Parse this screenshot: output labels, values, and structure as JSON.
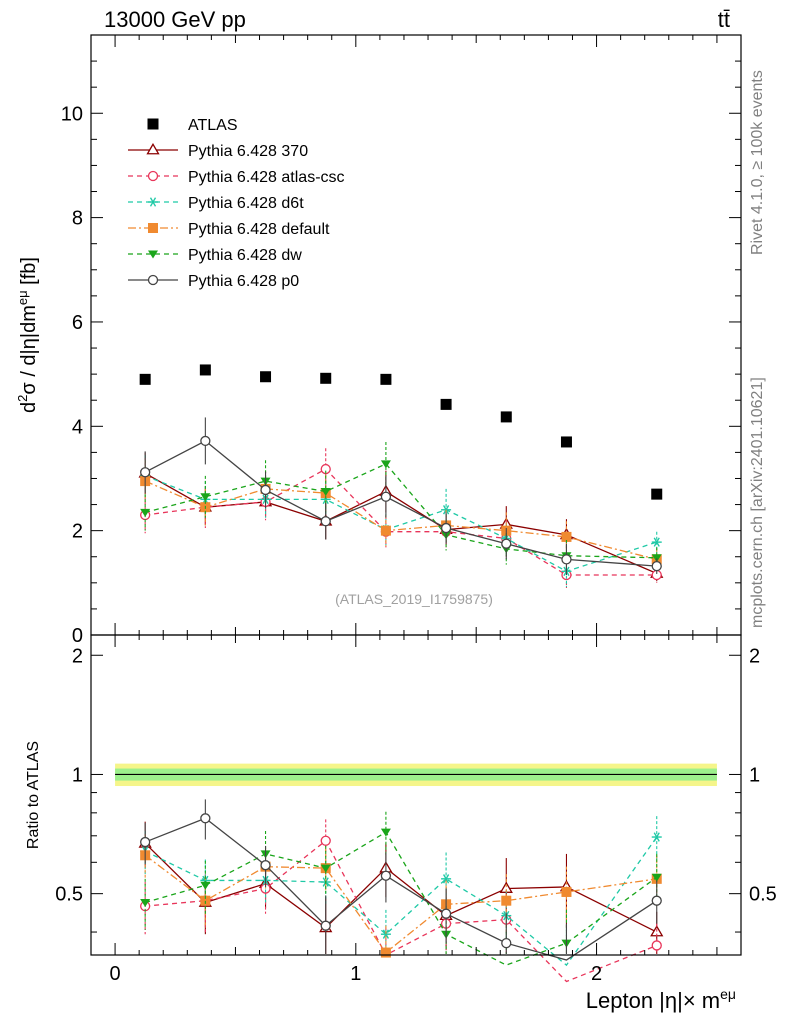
{
  "header": {
    "left": "13000 GeV pp",
    "right": "tt̄"
  },
  "side_labels": {
    "rivet": "Rivet 4.1.0, ≥ 100k events",
    "mcplots": "mcplots.cern.ch [arXiv:2401.10621]"
  },
  "colors": {
    "atlas": "#000000",
    "p370": "#8b0000",
    "atlascsc": "#e8355a",
    "d6t": "#1fc9a6",
    "default": "#f08a30",
    "dw": "#1aa51a",
    "p0": "#444444",
    "band_yellow": "#f5f58a",
    "band_green": "#9cf08c"
  },
  "chart_data": [
    {
      "type": "scatter",
      "title": "",
      "watermark": "(ATLAS_2019_I1759875)",
      "xlabel": "Lepton |η|× m^eμ",
      "ylabel": "d²σ / d|η|dm^eμ [fb]",
      "xlim": [
        -0.1,
        2.6
      ],
      "ylim": [
        0,
        11.5
      ],
      "yticks": [
        "0",
        "2",
        "4",
        "6",
        "8",
        "10"
      ],
      "x": [
        0.125,
        0.375,
        0.625,
        0.875,
        1.125,
        1.375,
        1.625,
        1.875,
        2.25
      ],
      "series": [
        {
          "name": "ATLAS",
          "key": "atlas",
          "marker": "square-filled",
          "line": "none",
          "values": [
            4.9,
            5.08,
            4.95,
            4.92,
            4.9,
            4.42,
            4.18,
            3.7,
            2.7
          ]
        },
        {
          "name": "Pythia 6.428 370",
          "key": "p370",
          "marker": "triangle-open",
          "line": "solid",
          "values": [
            3.1,
            2.45,
            2.55,
            2.18,
            2.75,
            2.02,
            2.12,
            1.92,
            1.18
          ],
          "errors": [
            0.4,
            0.35,
            0.3,
            0.35,
            0.4,
            0.3,
            0.35,
            0.3,
            0.15
          ]
        },
        {
          "name": "Pythia 6.428 atlas-csc",
          "key": "atlascsc",
          "marker": "circle-open",
          "line": "dashed",
          "values": [
            2.3,
            2.45,
            2.55,
            3.18,
            1.98,
            1.98,
            1.85,
            1.15,
            1.15
          ],
          "errors": [
            0.35,
            0.4,
            0.35,
            0.4,
            0.3,
            0.3,
            0.35,
            0.25,
            0.15
          ]
        },
        {
          "name": "Pythia 6.428 d6t",
          "key": "d6t",
          "marker": "star",
          "line": "dashed",
          "values": [
            3.05,
            2.6,
            2.6,
            2.6,
            2.02,
            2.4,
            1.85,
            1.22,
            1.78
          ],
          "errors": [
            0.4,
            0.35,
            0.35,
            0.35,
            0.3,
            0.4,
            0.3,
            0.3,
            0.2
          ]
        },
        {
          "name": "Pythia 6.428 default",
          "key": "default",
          "marker": "square-filled",
          "line": "dashdot",
          "values": [
            2.95,
            2.45,
            2.8,
            2.72,
            2.0,
            2.1,
            2.0,
            1.88,
            1.45
          ],
          "errors": [
            0.4,
            0.35,
            0.35,
            0.35,
            0.3,
            0.3,
            0.35,
            0.3,
            0.2
          ]
        },
        {
          "name": "Pythia 6.428 dw",
          "key": "dw",
          "marker": "triangle-down-filled",
          "line": "dashed",
          "values": [
            2.35,
            2.65,
            2.95,
            2.75,
            3.28,
            1.92,
            1.65,
            1.52,
            1.48
          ],
          "errors": [
            0.35,
            0.4,
            0.4,
            0.4,
            0.42,
            0.3,
            0.3,
            0.3,
            0.2
          ]
        },
        {
          "name": "Pythia 6.428 p0",
          "key": "p0",
          "marker": "circle-open",
          "line": "solid",
          "values": [
            3.12,
            3.72,
            2.78,
            2.18,
            2.65,
            2.05,
            1.75,
            1.45,
            1.32
          ],
          "errors": [
            0.4,
            0.45,
            0.35,
            0.35,
            0.4,
            0.3,
            0.3,
            0.3,
            0.15
          ]
        }
      ]
    },
    {
      "type": "scatter",
      "title": "",
      "xlabel": "Lepton |η|× m^eμ",
      "ylabel": "Ratio to ATLAS",
      "xlim": [
        -0.1,
        2.6
      ],
      "ylim": [
        0.35,
        2.25
      ],
      "xticks": [
        "0",
        "1",
        "2"
      ],
      "yticks": [
        "0.5",
        "1",
        "2"
      ],
      "x": [
        0.125,
        0.375,
        0.625,
        0.875,
        1.125,
        1.375,
        1.625,
        1.875,
        2.25
      ],
      "reference": 1.0,
      "band_yellow": 0.065,
      "band_green": 0.035,
      "series": [
        {
          "name": "Pythia 6.428 370",
          "key": "p370",
          "values": [
            0.67,
            0.475,
            0.53,
            0.41,
            0.58,
            0.44,
            0.515,
            0.52,
            0.4
          ],
          "errors": [
            0.09,
            0.08,
            0.07,
            0.08,
            0.09,
            0.08,
            0.1,
            0.11,
            0.05
          ]
        },
        {
          "name": "Pythia 6.428 atlas-csc",
          "key": "atlascsc",
          "values": [
            0.465,
            0.48,
            0.515,
            0.68,
            0.35,
            0.42,
            0.43,
            0.3,
            0.37
          ],
          "errors": [
            0.07,
            0.08,
            0.07,
            0.09,
            0.06,
            0.07,
            0.08,
            0.07,
            0.05
          ]
        },
        {
          "name": "Pythia 6.428 d6t",
          "key": "d6t",
          "values": [
            0.64,
            0.54,
            0.54,
            0.535,
            0.395,
            0.545,
            0.44,
            0.33,
            0.695
          ],
          "errors": [
            0.08,
            0.07,
            0.07,
            0.07,
            0.06,
            0.09,
            0.07,
            0.08,
            0.09
          ]
        },
        {
          "name": "Pythia 6.428 default",
          "key": "default",
          "values": [
            0.625,
            0.48,
            0.585,
            0.58,
            0.355,
            0.47,
            0.48,
            0.505,
            0.545
          ],
          "errors": [
            0.08,
            0.07,
            0.07,
            0.07,
            0.06,
            0.07,
            0.08,
            0.08,
            0.08
          ]
        },
        {
          "name": "Pythia 6.428 dw",
          "key": "dw",
          "values": [
            0.475,
            0.525,
            0.63,
            0.58,
            0.715,
            0.395,
            0.33,
            0.375,
            0.55
          ],
          "errors": [
            0.07,
            0.08,
            0.09,
            0.08,
            0.09,
            0.07,
            0.07,
            0.08,
            0.08
          ]
        },
        {
          "name": "Pythia 6.428 p0",
          "key": "p0",
          "values": [
            0.675,
            0.775,
            0.59,
            0.415,
            0.555,
            0.445,
            0.375,
            0.34,
            0.48
          ],
          "errors": [
            0.08,
            0.09,
            0.07,
            0.08,
            0.08,
            0.07,
            0.07,
            0.08,
            0.06
          ]
        }
      ]
    }
  ]
}
